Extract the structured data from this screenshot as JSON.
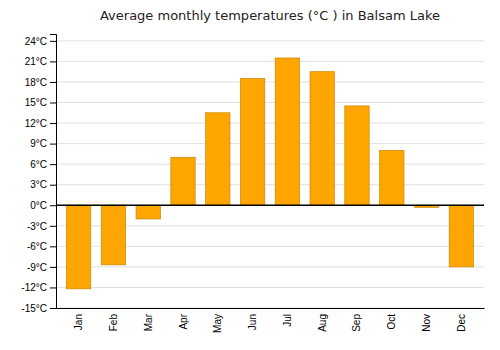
{
  "chart_data": {
    "type": "bar",
    "title": "Average monthly temperatures (°C ) in Balsam Lake",
    "categories": [
      "Jan",
      "Feb",
      "Mar",
      "Apr",
      "May",
      "Jun",
      "Jul",
      "Aug",
      "Sep",
      "Oct",
      "Nov",
      "Dec"
    ],
    "values": [
      -12.2,
      -8.7,
      -2.0,
      7.0,
      13.5,
      18.5,
      21.5,
      19.5,
      14.5,
      8.0,
      -0.3,
      -9.0
    ],
    "color": "#FFA500",
    "ylim": [
      -15,
      25
    ],
    "yticks": [
      {
        "value": -15,
        "label": "-15°C"
      },
      {
        "value": -12,
        "label": "-12°C"
      },
      {
        "value": -9,
        "label": "-9°C"
      },
      {
        "value": -6,
        "label": "-6°C"
      },
      {
        "value": -3,
        "label": "-3°C"
      },
      {
        "value": 0,
        "label": "0°C"
      },
      {
        "value": 3,
        "label": "3°C"
      },
      {
        "value": 6,
        "label": "6°C"
      },
      {
        "value": 9,
        "label": "9°C"
      },
      {
        "value": 12,
        "label": "12°C"
      },
      {
        "value": 15,
        "label": "15°C"
      },
      {
        "value": 18,
        "label": "18°C"
      },
      {
        "value": 21,
        "label": "21°C"
      },
      {
        "value": 24,
        "label": "24°C"
      }
    ],
    "grid": true
  }
}
